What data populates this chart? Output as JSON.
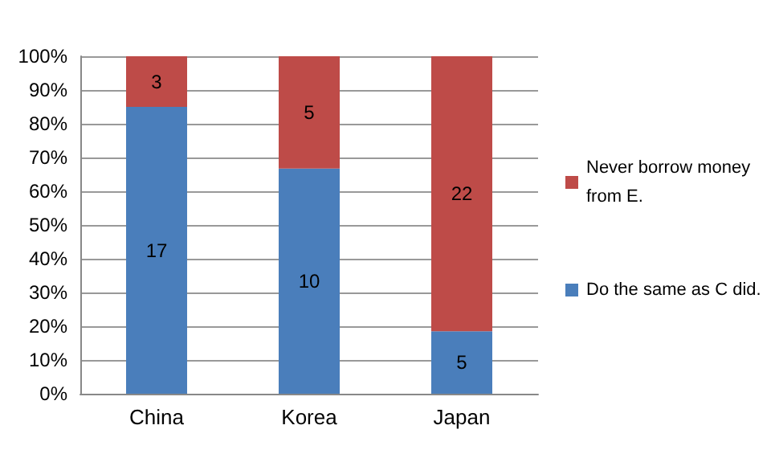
{
  "chart_data": {
    "type": "bar",
    "stacked": true,
    "categories": [
      "China",
      "Korea",
      "Japan"
    ],
    "series": [
      {
        "name": "Do the same as C did.",
        "color": "#4a7ebb",
        "values": [
          85,
          66.7,
          18.5
        ]
      },
      {
        "name": "Never borrow money from E.",
        "color": "#be4b48",
        "values": [
          15,
          33.3,
          81.5
        ]
      }
    ],
    "annotations": [
      "17",
      "10",
      "5",
      "3",
      "5",
      "22"
    ],
    "ylim": [
      0,
      100
    ],
    "yticks": [
      {
        "value": 0,
        "label": "0%"
      },
      {
        "value": 10,
        "label": "10%"
      },
      {
        "value": 20,
        "label": "20%"
      },
      {
        "value": 30,
        "label": "30%"
      },
      {
        "value": 40,
        "label": "40%"
      },
      {
        "value": 50,
        "label": "50%"
      },
      {
        "value": 60,
        "label": "60%"
      },
      {
        "value": 70,
        "label": "70%"
      },
      {
        "value": 80,
        "label": "80%"
      },
      {
        "value": 90,
        "label": "90%"
      },
      {
        "value": 100,
        "label": "100%"
      }
    ],
    "grid": "y",
    "legend": "right"
  }
}
